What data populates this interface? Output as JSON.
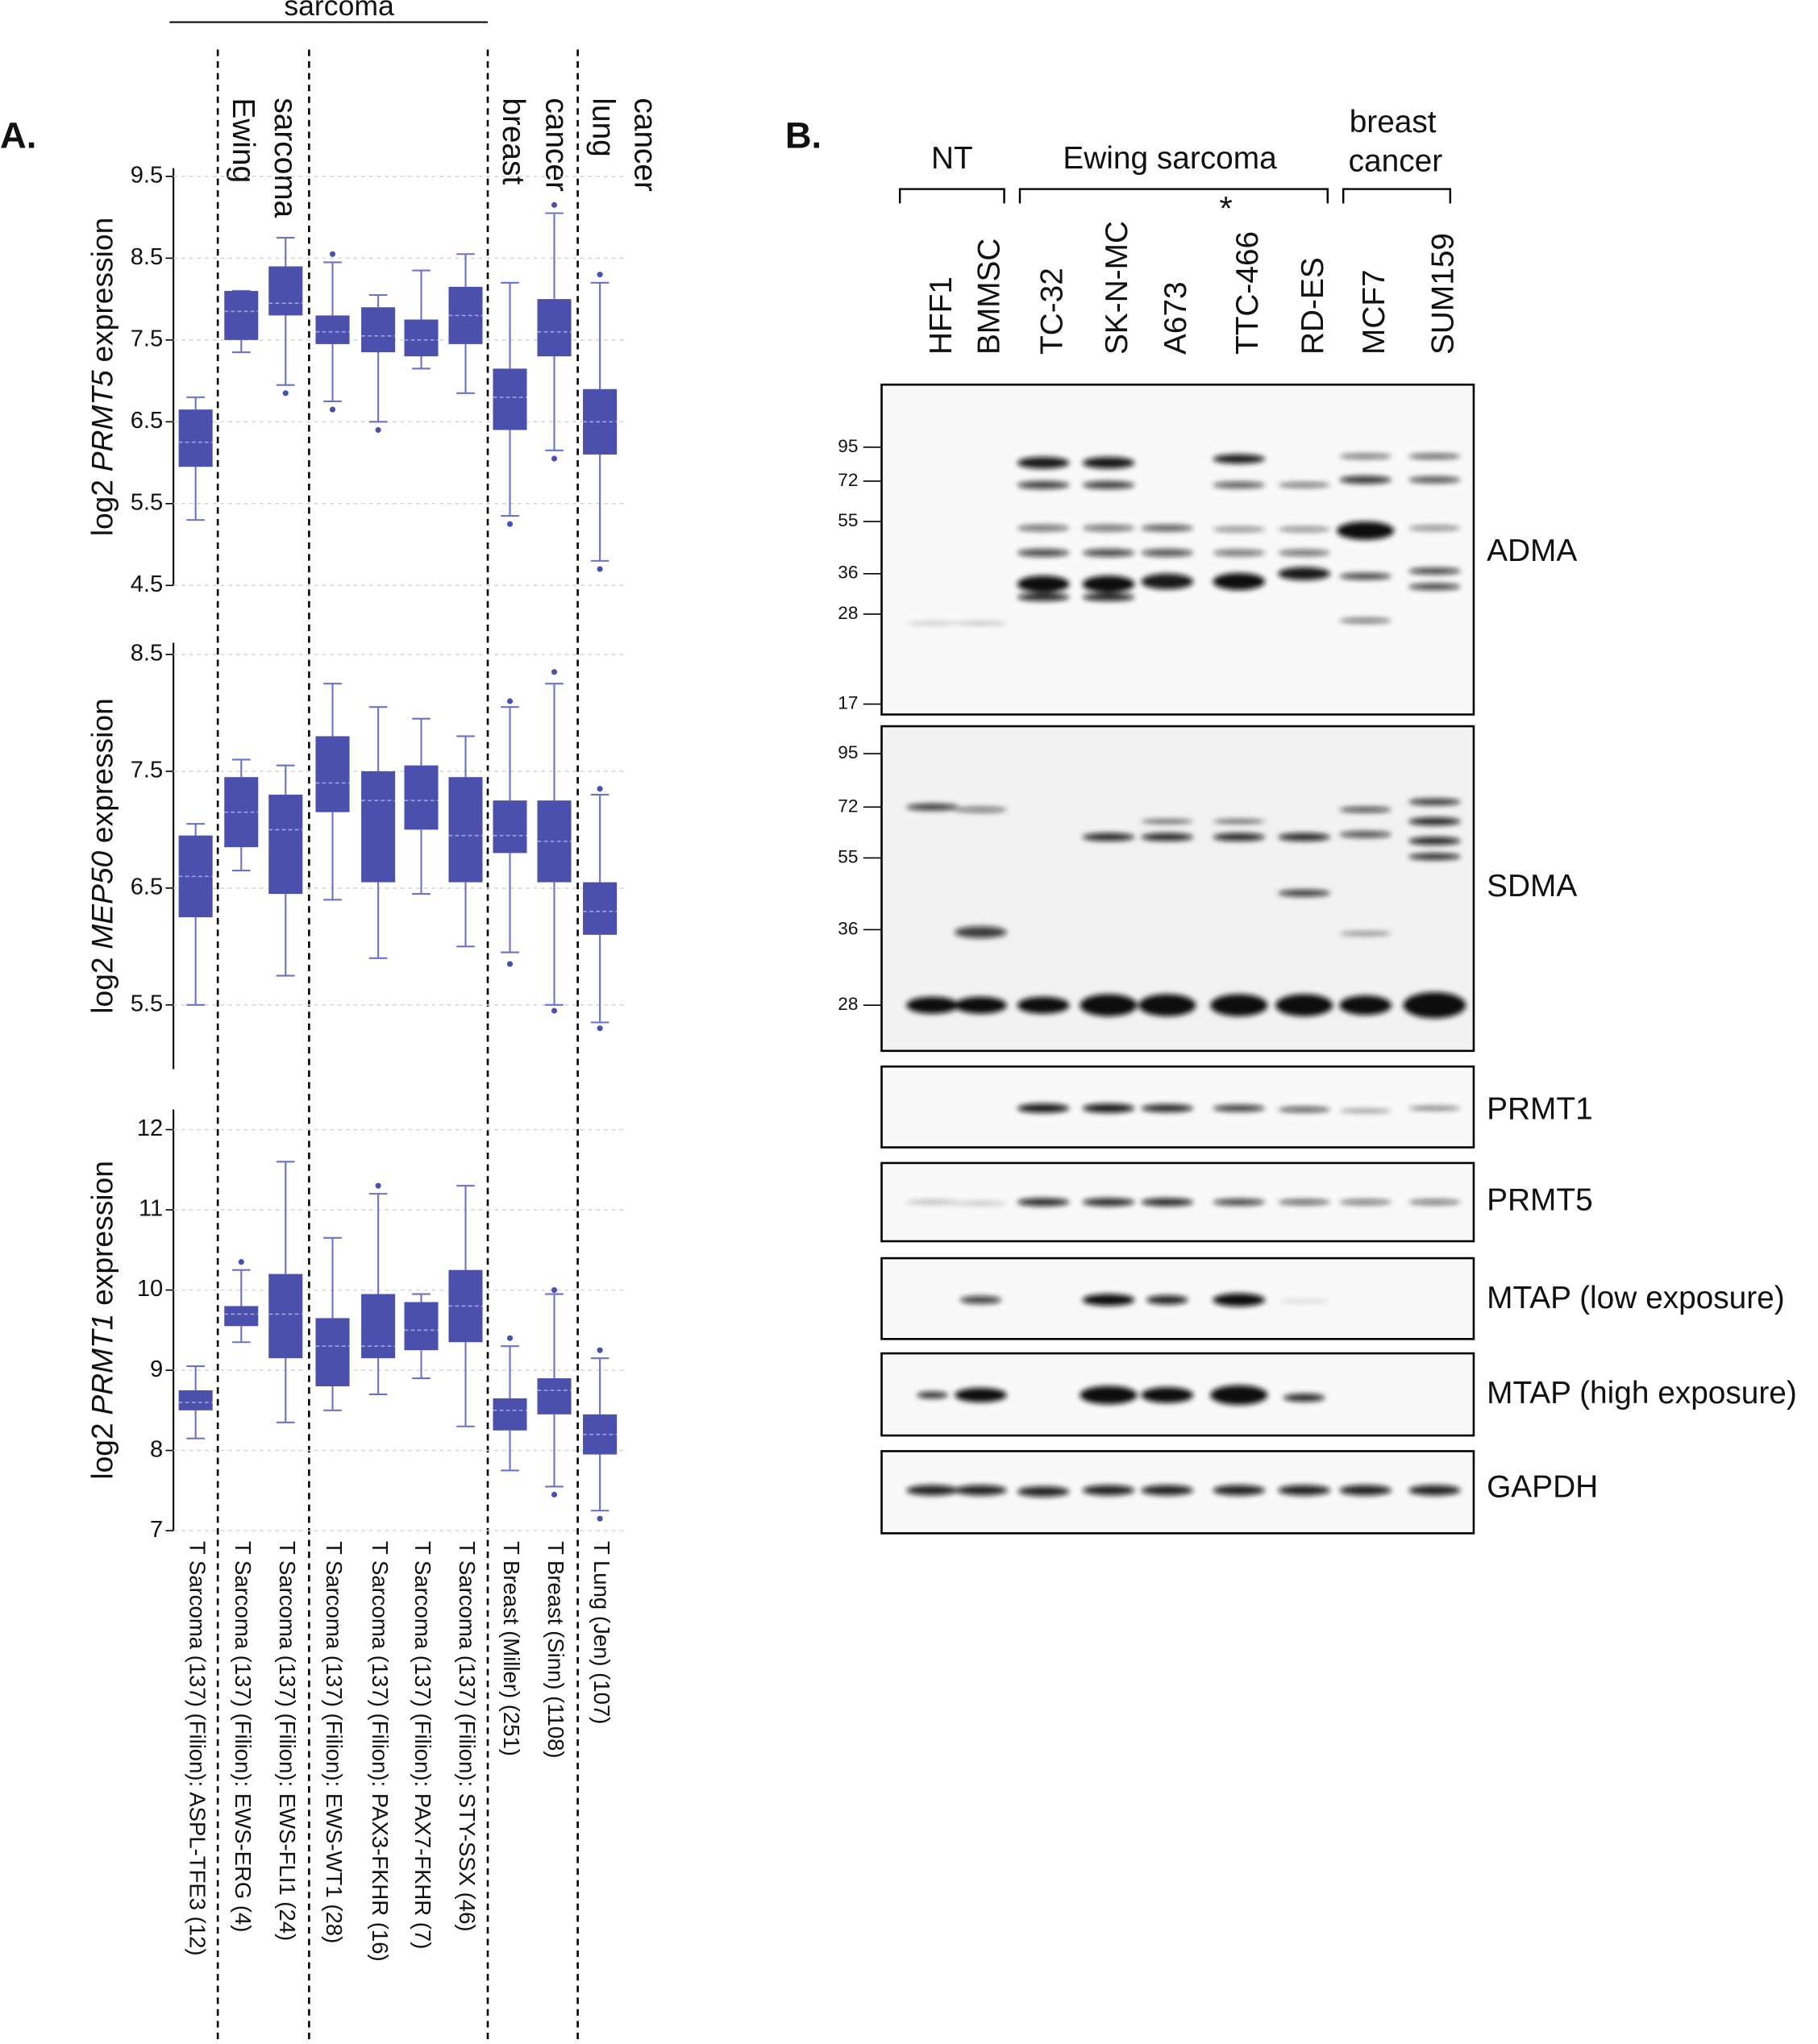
{
  "panel_a": {
    "label": "A.",
    "group_header": "sarcoma",
    "groups": [
      [
        "Ewing",
        "sarcoma"
      ],
      [
        "breast",
        "cancer"
      ],
      [
        "lung",
        "cancer"
      ]
    ]
  },
  "chart_data": [
    {
      "type": "box",
      "ylabel": [
        "log2",
        "PRMT5",
        "expression"
      ],
      "color": "#4b50ad",
      "ylim": [
        4.5,
        9.6
      ],
      "yticks": [
        4.5,
        5.5,
        6.5,
        7.5,
        8.5,
        9.5
      ],
      "grid": true,
      "low": [
        5.3,
        7.35,
        6.95,
        6.75,
        6.5,
        7.15,
        6.85,
        5.35,
        6.15,
        4.8
      ],
      "q1": [
        5.95,
        7.5,
        7.8,
        7.45,
        7.35,
        7.3,
        7.45,
        6.4,
        7.3,
        6.1
      ],
      "median": [
        6.25,
        7.85,
        7.95,
        7.6,
        7.55,
        7.5,
        7.8,
        6.8,
        7.6,
        6.5
      ],
      "q3": [
        6.65,
        8.1,
        8.4,
        7.8,
        7.9,
        7.75,
        8.15,
        7.15,
        8.0,
        6.9
      ],
      "high": [
        6.8,
        8.1,
        8.75,
        8.45,
        8.05,
        8.35,
        8.55,
        8.2,
        9.05,
        8.2
      ],
      "outliers": [
        [],
        [],
        [
          6.85
        ],
        [
          8.55,
          6.65
        ],
        [
          6.4
        ],
        [],
        [],
        [
          5.25
        ],
        [
          9.15,
          6.05
        ],
        [
          8.3,
          4.7
        ]
      ]
    },
    {
      "type": "box",
      "ylabel": [
        "log2",
        "MEP50",
        "expression"
      ],
      "color": "#4b50ad",
      "ylim": [
        4.95,
        8.6
      ],
      "yticks": [
        5.5,
        6.5,
        7.5,
        8.5
      ],
      "grid": true,
      "low": [
        5.5,
        6.65,
        5.75,
        6.4,
        5.9,
        6.45,
        6.0,
        5.95,
        5.5,
        5.35
      ],
      "q1": [
        6.25,
        6.85,
        6.45,
        7.15,
        6.55,
        7.0,
        6.55,
        6.8,
        6.55,
        6.1
      ],
      "median": [
        6.6,
        7.15,
        7.0,
        7.4,
        7.25,
        7.25,
        6.95,
        6.95,
        6.9,
        6.3
      ],
      "q3": [
        6.95,
        7.45,
        7.3,
        7.8,
        7.5,
        7.55,
        7.45,
        7.25,
        7.25,
        6.55
      ],
      "high": [
        7.05,
        7.6,
        7.55,
        8.25,
        8.05,
        7.95,
        7.8,
        8.05,
        8.25,
        7.3
      ],
      "outliers": [
        [],
        [],
        [],
        [],
        [],
        [],
        [],
        [
          8.1,
          5.85
        ],
        [
          8.35,
          5.45
        ],
        [
          7.35,
          5.3
        ]
      ]
    },
    {
      "type": "box",
      "ylabel": [
        "log2",
        "PRMT1",
        "expression"
      ],
      "color": "#4b50ad",
      "ylim": [
        7,
        12.25
      ],
      "yticks": [
        7,
        8,
        9,
        10,
        11,
        12
      ],
      "grid": true,
      "categories": [
        "T Sarcoma (137) (Filion): ASPL-TFE3 (12)",
        "T Sarcoma (137) (Filion): EWS-ERG (4)",
        "T Sarcoma (137) (Filion): EWS-FLI1 (24)",
        "T Sarcoma (137) (Filion): EWS-WT1 (28)",
        "T Sarcoma (137) (Filion): PAX3-FKHR (16)",
        "T Sarcoma (137) (Filion): PAX7-FKHR (7)",
        "T Sarcoma (137) (Filion): STY-SSX (46)",
        "T Breast (Miller) (251)",
        "T Breast (Sinn) (1108)",
        "T Lung (Jen) (107)"
      ],
      "low": [
        8.15,
        9.35,
        8.35,
        8.5,
        8.7,
        8.9,
        8.3,
        7.75,
        7.55,
        7.25
      ],
      "q1": [
        8.5,
        9.55,
        9.15,
        8.8,
        9.15,
        9.25,
        9.35,
        8.25,
        8.45,
        7.95
      ],
      "median": [
        8.6,
        9.7,
        9.7,
        9.3,
        9.3,
        9.5,
        9.8,
        8.5,
        8.75,
        8.2
      ],
      "q3": [
        8.75,
        9.8,
        10.2,
        9.65,
        9.95,
        9.85,
        10.25,
        8.65,
        8.9,
        8.45
      ],
      "high": [
        9.05,
        10.25,
        11.6,
        10.65,
        11.2,
        9.95,
        11.3,
        9.3,
        9.95,
        9.15
      ],
      "outliers": [
        [],
        [
          10.35
        ],
        [],
        [],
        [
          11.3
        ],
        [],
        [],
        [
          9.4
        ],
        [
          10.0,
          7.45
        ],
        [
          9.25,
          7.15
        ]
      ]
    }
  ],
  "panel_b": {
    "label": "B.",
    "lane_groups": [
      [
        "NT"
      ],
      [
        "Ewing sarcoma"
      ],
      [
        "breast",
        "cancer"
      ]
    ],
    "asterisk": "*",
    "lanes": [
      "HFF1",
      "BMMSC",
      "TC-32",
      "SK-N-MC",
      "A673",
      "TTC-466",
      "RD-ES",
      "MCF7",
      "SUM159"
    ],
    "blots": [
      {
        "name": "ADMA",
        "markers": [
          95,
          72,
          55,
          36,
          28,
          17
        ]
      },
      {
        "name": "SDMA",
        "markers": [
          95,
          72,
          55,
          36,
          28
        ]
      },
      {
        "name": "PRMT1"
      },
      {
        "name": "PRMT5"
      },
      {
        "name": "MTAP (low exposure)"
      },
      {
        "name": "MTAP (high exposure)"
      },
      {
        "name": "GAPDH"
      }
    ]
  }
}
